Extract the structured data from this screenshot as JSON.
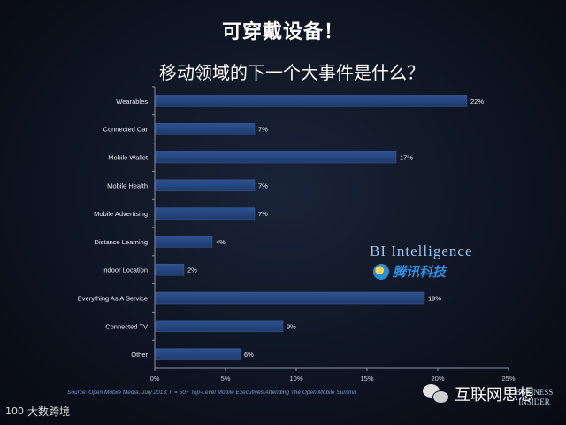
{
  "header": {
    "title": "可穿戴设备！",
    "subtitle": "移动领域的下一个大事件是什么？"
  },
  "chart_data": {
    "type": "bar",
    "orientation": "horizontal",
    "categories": [
      "Wearables",
      "Connected Car",
      "Mobile Wallet",
      "Mobile Health",
      "Mobile Advertising",
      "Distance Learning",
      "Indoor Location",
      "Everything As A Service",
      "Connected TV",
      "Other"
    ],
    "values": [
      22,
      7,
      17,
      7,
      7,
      4,
      2,
      19,
      9,
      6
    ],
    "data_labels": [
      "22%",
      "7%",
      "17%",
      "7%",
      "7%",
      "4%",
      "2%",
      "19%",
      "9%",
      "6%"
    ],
    "xlim": [
      0,
      25
    ],
    "x_ticks": [
      0,
      5,
      10,
      15,
      20,
      25
    ],
    "x_tick_labels": [
      "0%",
      "5%",
      "10%",
      "15%",
      "20%",
      "25%"
    ],
    "grid": false,
    "bar_color": "#1f3a6e",
    "bar_highlight": "#2e5290"
  },
  "source": "Source: Open Mobile Media, July 2013; n = 50+ Top-Level Mobile Executives Attending The Open Mobile Summit",
  "watermarks": {
    "bi_intelligence": "BI Intelligence",
    "tencent": "腾讯科技",
    "wechat_account": "互联网思想",
    "business_insider_line1": "BUSINESS",
    "business_insider_line2": "INSIDER",
    "logo_mark": "100",
    "logo_text": "大数跨境"
  }
}
